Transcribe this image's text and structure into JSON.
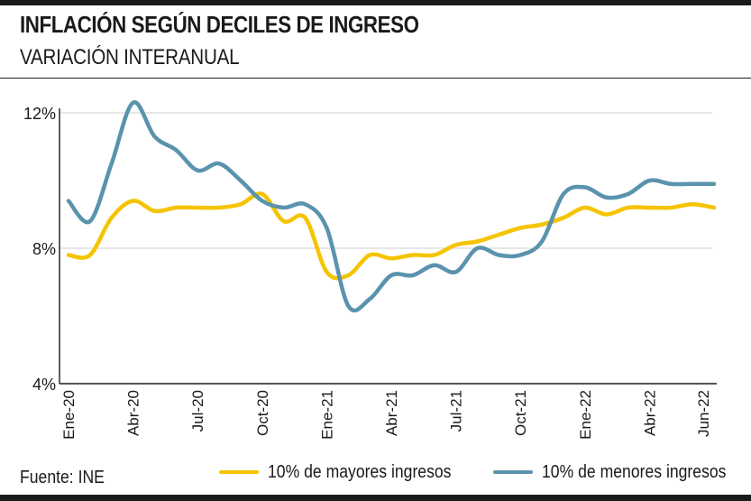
{
  "header": {
    "title": "INFLACIÓN SEGÚN DECILES DE INGRESO",
    "subtitle": "VARIACIÓN INTERANUAL"
  },
  "footer": {
    "source": "Fuente: INE"
  },
  "colors": {
    "higher": "#F5C400",
    "lower": "#5A93AD",
    "grid": "#cfcfcf",
    "text": "#1a1a1a"
  },
  "chart_data": {
    "type": "line",
    "x": [
      "Ene-20",
      "Feb-20",
      "Mar-20",
      "Abr-20",
      "May-20",
      "Jun-20",
      "Jul-20",
      "Ago-20",
      "Sep-20",
      "Oct-20",
      "Nov-20",
      "Dic-20",
      "Ene-21",
      "Feb-21",
      "Mar-21",
      "Abr-21",
      "May-21",
      "Jun-21",
      "Jul-21",
      "Ago-21",
      "Sep-21",
      "Oct-21",
      "Nov-21",
      "Dic-21",
      "Ene-22",
      "Feb-22",
      "Mar-22",
      "Abr-22",
      "May-22",
      "Jun-22",
      "Jul-22"
    ],
    "x_tick_labels": [
      "Ene-20",
      "Abr-20",
      "Jul-20",
      "Oct-20",
      "Ene-21",
      "Abr-21",
      "Jul-21",
      "Oct-21",
      "Ene-22",
      "Abr-22",
      "Jun-22"
    ],
    "x_tick_index": [
      0,
      3,
      6,
      9,
      12,
      15,
      18,
      21,
      24,
      27,
      29.5
    ],
    "y_ticks": [
      {
        "value": 4,
        "label": "4%"
      },
      {
        "value": 8,
        "label": "8%"
      },
      {
        "value": 12,
        "label": "12%"
      }
    ],
    "ylim": [
      4,
      12
    ],
    "grid": true,
    "legend_position": "bottom",
    "series": [
      {
        "name": "10% de mayores ingresos",
        "key": "higher",
        "values": [
          7.8,
          7.8,
          8.9,
          9.4,
          9.1,
          9.2,
          9.2,
          9.2,
          9.3,
          9.6,
          8.8,
          8.9,
          7.3,
          7.2,
          7.8,
          7.7,
          7.8,
          7.8,
          8.1,
          8.2,
          8.4,
          8.6,
          8.7,
          8.9,
          9.2,
          9.0,
          9.2,
          9.2,
          9.2,
          9.3,
          9.2
        ]
      },
      {
        "name": "10% de menores ingresos",
        "key": "lower",
        "values": [
          9.4,
          8.8,
          10.5,
          12.3,
          11.3,
          10.9,
          10.3,
          10.5,
          10.0,
          9.4,
          9.2,
          9.3,
          8.6,
          6.3,
          6.5,
          7.2,
          7.2,
          7.5,
          7.3,
          8.0,
          7.8,
          7.8,
          8.2,
          9.6,
          9.8,
          9.5,
          9.6,
          10.0,
          9.9,
          9.9,
          9.9
        ]
      }
    ]
  }
}
